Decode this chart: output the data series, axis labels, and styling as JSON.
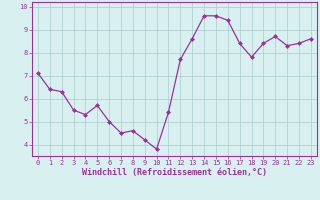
{
  "x": [
    0,
    1,
    2,
    3,
    4,
    5,
    6,
    7,
    8,
    9,
    10,
    11,
    12,
    13,
    14,
    15,
    16,
    17,
    18,
    19,
    20,
    21,
    22,
    23
  ],
  "y": [
    7.1,
    6.4,
    6.3,
    5.5,
    5.3,
    5.7,
    5.0,
    4.5,
    4.6,
    4.2,
    3.8,
    5.4,
    7.7,
    8.6,
    9.6,
    9.6,
    9.4,
    8.4,
    7.8,
    8.4,
    8.7,
    8.3,
    8.4,
    8.6
  ],
  "line_color": "#993399",
  "marker": "D",
  "marker_size": 2.0,
  "linewidth": 0.9,
  "xlabel": "Windchill (Refroidissement éolien,°C)",
  "xlabel_fontsize": 6.0,
  "bg_color": "#d9f0f0",
  "grid_color": "#aacccc",
  "axis_label_color": "#993399",
  "tick_color": "#993399",
  "ylim": [
    3.5,
    10.2
  ],
  "xlim": [
    -0.5,
    23.5
  ],
  "yticks": [
    4,
    5,
    6,
    7,
    8,
    9,
    10
  ],
  "xticks": [
    0,
    1,
    2,
    3,
    4,
    5,
    6,
    7,
    8,
    9,
    10,
    11,
    12,
    13,
    14,
    15,
    16,
    17,
    18,
    19,
    20,
    21,
    22,
    23
  ],
  "tick_fontsize": 5.0,
  "border_color": "#993399",
  "spine_linewidth": 0.8
}
